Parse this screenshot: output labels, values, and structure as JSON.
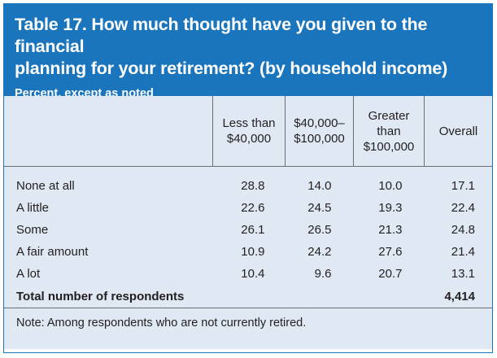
{
  "header": {
    "title_line1": "Table 17. How much thought have you given to the financial",
    "title_line2": "planning for your retirement? (by household income)",
    "subtitle": "Percent, except as noted"
  },
  "columns": {
    "c1_line1": "Less than",
    "c1_line2": "$40,000",
    "c2_line1": "$40,000–",
    "c2_line2": "$100,000",
    "c3_line1": "Greater",
    "c3_line2": "than",
    "c3_line3": "$100,000",
    "c4": "Overall"
  },
  "rows": [
    {
      "label": "None at all",
      "values": [
        "28.8",
        "14.0",
        "10.0",
        "17.1"
      ]
    },
    {
      "label": "A little",
      "values": [
        "22.6",
        "24.5",
        "19.3",
        "22.4"
      ]
    },
    {
      "label": "Some",
      "values": [
        "26.1",
        "26.5",
        "21.3",
        "24.8"
      ]
    },
    {
      "label": "A fair amount",
      "values": [
        "10.9",
        "24.2",
        "27.6",
        "21.4"
      ]
    },
    {
      "label": "A lot",
      "values": [
        "10.4",
        "9.6",
        "20.7",
        "13.1"
      ]
    }
  ],
  "total": {
    "label": "Total number of respondents",
    "overall": "4,414"
  },
  "note": "Note: Among respondents who are not currently retired.",
  "colors": {
    "header_bg": "#1b75bc",
    "table_bg": "#dfe8f3"
  }
}
